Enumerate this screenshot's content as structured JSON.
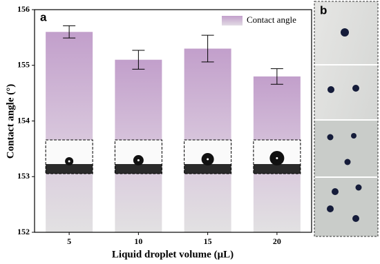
{
  "chart_data": {
    "type": "bar",
    "panel_labels": [
      "a",
      "b"
    ],
    "xlabel": "Liquid droplet volume (μL)",
    "ylabel": "Contact angle (°)",
    "categories": [
      "5",
      "10",
      "15",
      "20"
    ],
    "series": [
      {
        "name": "Contact angle",
        "color": "#c29fcb",
        "values": [
          155.6,
          155.1,
          155.3,
          154.8
        ],
        "errors": [
          0.11,
          0.17,
          0.24,
          0.14
        ]
      }
    ],
    "ylim": [
      152,
      156
    ],
    "yticks": [
      152,
      153,
      154,
      155,
      156
    ],
    "legend": "upper right"
  }
}
